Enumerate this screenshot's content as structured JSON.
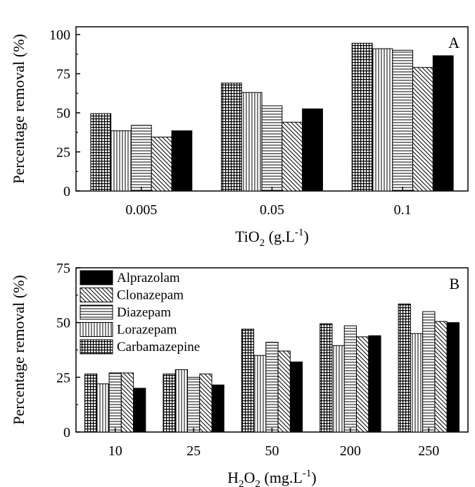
{
  "patterns": {
    "Carbamazepine": "grid",
    "Lorazepam": "vertical",
    "Diazepam": "horizontal",
    "Clonazepam": "diagonal",
    "Alprazolam": "solid"
  },
  "chart_data": [
    {
      "panel_label": "A",
      "type": "bar",
      "categories": [
        "0.005",
        "0.05",
        "0.1"
      ],
      "series": [
        {
          "name": "Carbamazepine",
          "values": [
            49.5,
            69,
            94.5
          ]
        },
        {
          "name": "Lorazepam",
          "values": [
            38.5,
            63,
            91
          ]
        },
        {
          "name": "Diazepam",
          "values": [
            42,
            54.5,
            90
          ]
        },
        {
          "name": "Clonazepam",
          "values": [
            34.5,
            44,
            79
          ]
        },
        {
          "name": "Alprazolam",
          "values": [
            38.5,
            52.5,
            86.5
          ]
        }
      ],
      "ylabel": "Percentage removal (%)",
      "xlabel": {
        "base": "TiO",
        "sub": "2",
        "unit": " (g.L",
        "sup": "-1",
        "close": ")"
      },
      "ylim": [
        0,
        105
      ],
      "yticks": [
        0,
        25,
        50,
        75,
        100
      ],
      "grid": false,
      "legend": false
    },
    {
      "panel_label": "B",
      "type": "bar",
      "categories": [
        "10",
        "25",
        "50",
        "200",
        "250"
      ],
      "series": [
        {
          "name": "Carbamazepine",
          "values": [
            26.5,
            26.5,
            47,
            49.5,
            58.5
          ]
        },
        {
          "name": "Lorazepam",
          "values": [
            22,
            28.5,
            35,
            39.5,
            45
          ]
        },
        {
          "name": "Diazepam",
          "values": [
            27,
            25,
            41,
            48.5,
            55
          ]
        },
        {
          "name": "Clonazepam",
          "values": [
            27,
            26.5,
            37,
            43.5,
            50.5
          ]
        },
        {
          "name": "Alprazolam",
          "values": [
            20,
            21.5,
            32,
            44,
            50
          ]
        }
      ],
      "ylabel": "Percentage removal (%)",
      "xlabel": {
        "base": "H",
        "sub": "2",
        "mid": "O",
        "sub2": "2",
        "unit": " (mg.L",
        "sup": "-1",
        "close": ")"
      },
      "ylim": [
        0,
        75
      ],
      "yticks": [
        0,
        25,
        50,
        75
      ],
      "grid": false,
      "legend": true,
      "legend_placement": "top-left",
      "legend_order": [
        "Alprazolam",
        "Clonazepam",
        "Diazepam",
        "Lorazepam",
        "Carbamazepine"
      ]
    }
  ]
}
